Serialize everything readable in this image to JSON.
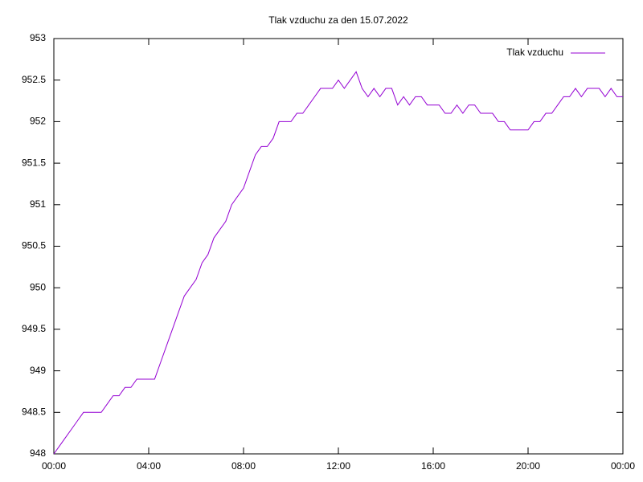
{
  "chart_data": {
    "type": "line",
    "title": "Tlak vzduchu za den 15.07.2022",
    "x": [
      0,
      0.25,
      0.5,
      0.75,
      1,
      1.25,
      1.5,
      1.75,
      2,
      2.25,
      2.5,
      2.75,
      3,
      3.25,
      3.5,
      3.75,
      4,
      4.25,
      4.5,
      4.75,
      5,
      5.25,
      5.5,
      5.75,
      6,
      6.25,
      6.5,
      6.75,
      7,
      7.25,
      7.5,
      7.75,
      8,
      8.25,
      8.5,
      8.75,
      9,
      9.25,
      9.5,
      9.75,
      10,
      10.25,
      10.5,
      10.75,
      11,
      11.25,
      11.5,
      11.75,
      12,
      12.25,
      12.5,
      12.75,
      13,
      13.25,
      13.5,
      13.75,
      14,
      14.25,
      14.5,
      14.75,
      15,
      15.25,
      15.5,
      15.75,
      16,
      16.25,
      16.5,
      16.75,
      17,
      17.25,
      17.5,
      17.75,
      18,
      18.25,
      18.5,
      18.75,
      19,
      19.25,
      19.5,
      19.75,
      20,
      20.25,
      20.5,
      20.75,
      21,
      21.25,
      21.5,
      21.75,
      22,
      22.25,
      22.5,
      22.75,
      23,
      23.25,
      23.5,
      23.75,
      24
    ],
    "series": [
      {
        "name": "Tlak vzduchu",
        "color": "#9400d3",
        "values": [
          948.0,
          948.1,
          948.2,
          948.3,
          948.4,
          948.5,
          948.5,
          948.5,
          948.5,
          948.6,
          948.7,
          948.7,
          948.8,
          948.8,
          948.9,
          948.9,
          948.9,
          948.9,
          949.1,
          949.3,
          949.5,
          949.7,
          949.9,
          950.0,
          950.1,
          950.3,
          950.4,
          950.6,
          950.7,
          950.8,
          951.0,
          951.1,
          951.2,
          951.4,
          951.6,
          951.7,
          951.7,
          951.8,
          952.0,
          952.0,
          952.0,
          952.1,
          952.1,
          952.2,
          952.3,
          952.4,
          952.4,
          952.4,
          952.5,
          952.4,
          952.5,
          952.6,
          952.4,
          952.3,
          952.4,
          952.3,
          952.4,
          952.4,
          952.2,
          952.3,
          952.2,
          952.3,
          952.3,
          952.2,
          952.2,
          952.2,
          952.1,
          952.1,
          952.2,
          952.1,
          952.2,
          952.2,
          952.1,
          952.1,
          952.1,
          952.0,
          952.0,
          951.9,
          951.9,
          951.9,
          951.9,
          952.0,
          952.0,
          952.1,
          952.1,
          952.2,
          952.3,
          952.3,
          952.4,
          952.3,
          952.4,
          952.4,
          952.4,
          952.3,
          952.4,
          952.3,
          952.3
        ]
      }
    ],
    "xlim": [
      0,
      24
    ],
    "xticks": [
      {
        "value": 0,
        "label": "00:00"
      },
      {
        "value": 4,
        "label": "04:00"
      },
      {
        "value": 8,
        "label": "08:00"
      },
      {
        "value": 12,
        "label": "12:00"
      },
      {
        "value": 16,
        "label": "16:00"
      },
      {
        "value": 20,
        "label": "20:00"
      },
      {
        "value": 24,
        "label": "00:00"
      }
    ],
    "ylim": [
      948,
      953
    ],
    "yticks": [
      948,
      948.5,
      949,
      949.5,
      950,
      950.5,
      951,
      951.5,
      952,
      952.5,
      953
    ],
    "grid": false,
    "legend": "top right"
  }
}
